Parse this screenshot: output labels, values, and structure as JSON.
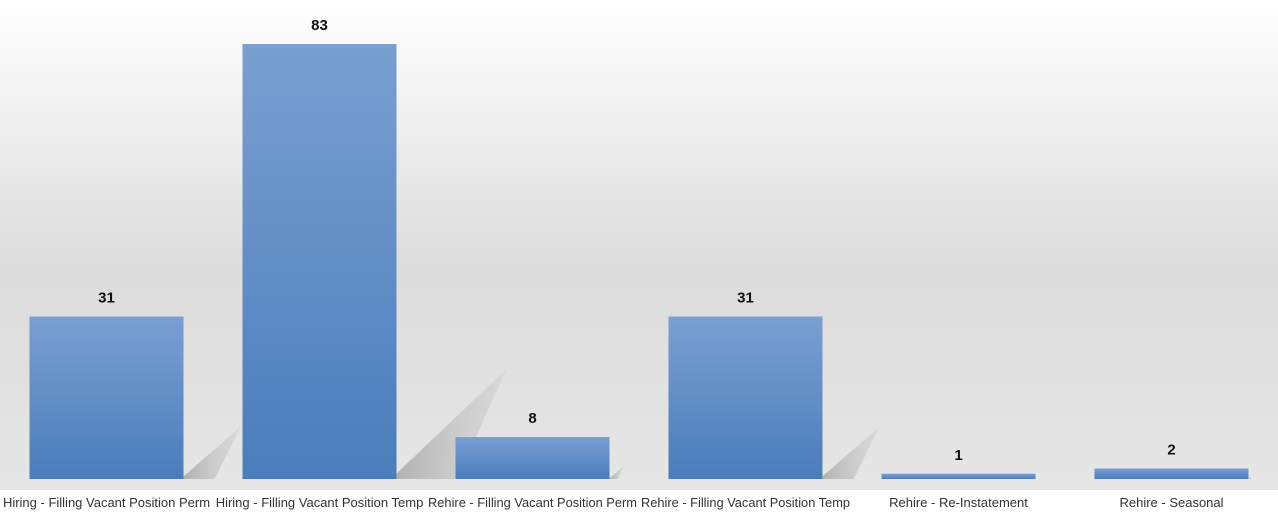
{
  "chart_data": {
    "type": "bar",
    "categories": [
      "Hiring - Filling Vacant Position Perm",
      "Hiring - Filling Vacant Position Temp",
      "Rehire - Filling Vacant Position Perm",
      "Rehire - Filling Vacant Position Temp",
      "Rehire - Re-Instatement",
      "Rehire - Seasonal"
    ],
    "values": [
      31,
      83,
      8,
      31,
      1,
      2
    ],
    "ylim": [
      0,
      83
    ],
    "data_labels": true,
    "grid": false,
    "legend": "none",
    "colors": {
      "bar_top": "#7a9fd1",
      "bar_bottom": "#4a7dbb",
      "shadow": "#b8b8b8",
      "background_top": "#ffffff",
      "background_bottom": "#d9d9d9"
    }
  }
}
